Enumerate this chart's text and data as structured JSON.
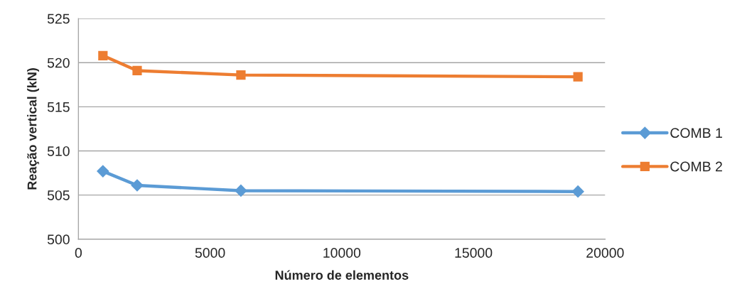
{
  "chart_data": {
    "type": "line",
    "xlabel": "Número de elementos",
    "ylabel": "Reação vertical (kN)",
    "xlim": [
      0,
      20000
    ],
    "xticks": [
      0,
      5000,
      10000,
      15000,
      20000
    ],
    "ylim": [
      500,
      525
    ],
    "yticks": [
      500,
      505,
      510,
      515,
      520,
      525
    ],
    "grid": "y",
    "legend": "right",
    "line_style": "solid",
    "series": [
      {
        "name": "COMB 1",
        "color": "#5b9bd5",
        "marker": "diamond",
        "x": [
          930,
          2230,
          6170,
          18970
        ],
        "values": [
          507.7,
          506.1,
          505.5,
          505.4
        ]
      },
      {
        "name": "COMB 2",
        "color": "#ed7d31",
        "marker": "square",
        "x": [
          930,
          2230,
          6170,
          18970
        ],
        "values": [
          520.8,
          519.1,
          518.6,
          518.4
        ]
      }
    ]
  }
}
